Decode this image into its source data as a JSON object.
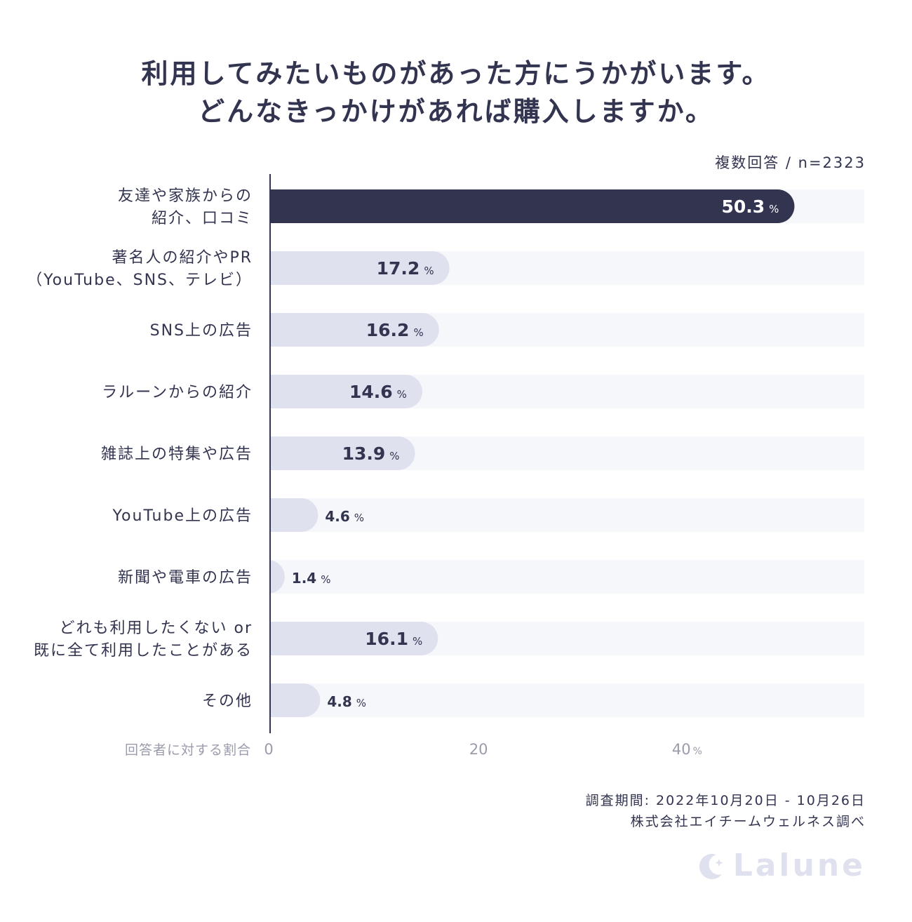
{
  "title": {
    "line1": "利用してみたいものがあった方にうかがいます。",
    "line2": "どんなきっかけがあれば購入しますか。"
  },
  "note": "複数回答 / n=2323",
  "chart_data": {
    "type": "bar",
    "orientation": "horizontal",
    "categories": [
      [
        "友達や家族からの",
        "紹介、口コミ"
      ],
      [
        "著名人の紹介やPR",
        "（YouTube、SNS、テレビ）"
      ],
      [
        "SNS上の広告"
      ],
      [
        "ラルーンからの紹介"
      ],
      [
        "雑誌上の特集や広告"
      ],
      [
        "YouTube上の広告"
      ],
      [
        "新聞や電車の広告"
      ],
      [
        "どれも利用したくない or",
        "既に全て利用したことがある"
      ],
      [
        "その他"
      ]
    ],
    "values": [
      50.3,
      17.2,
      16.2,
      14.6,
      13.9,
      4.6,
      1.4,
      16.1,
      4.8
    ],
    "value_unit": "%",
    "xlabel": "回答者に対する割合",
    "x_ticks": [
      "0",
      "20",
      "40"
    ],
    "x_tick_unit": "%",
    "xlim": [
      0,
      57
    ],
    "highlight_index": 0,
    "colors": {
      "highlight_bar": "#323450",
      "bar": "#dfe1ee",
      "track": "#f6f7fa",
      "axis": "#323450",
      "label": "#323450",
      "tick": "#9a9cab",
      "value_on_dark": "#ffffff"
    }
  },
  "footer": {
    "period": "調査期間: 2022年10月20日 - 10月26日",
    "source": "株式会社エイチームウェルネス調べ"
  },
  "logo": {
    "icon": "crescent-moon-star-icon",
    "text": "Lalune"
  }
}
